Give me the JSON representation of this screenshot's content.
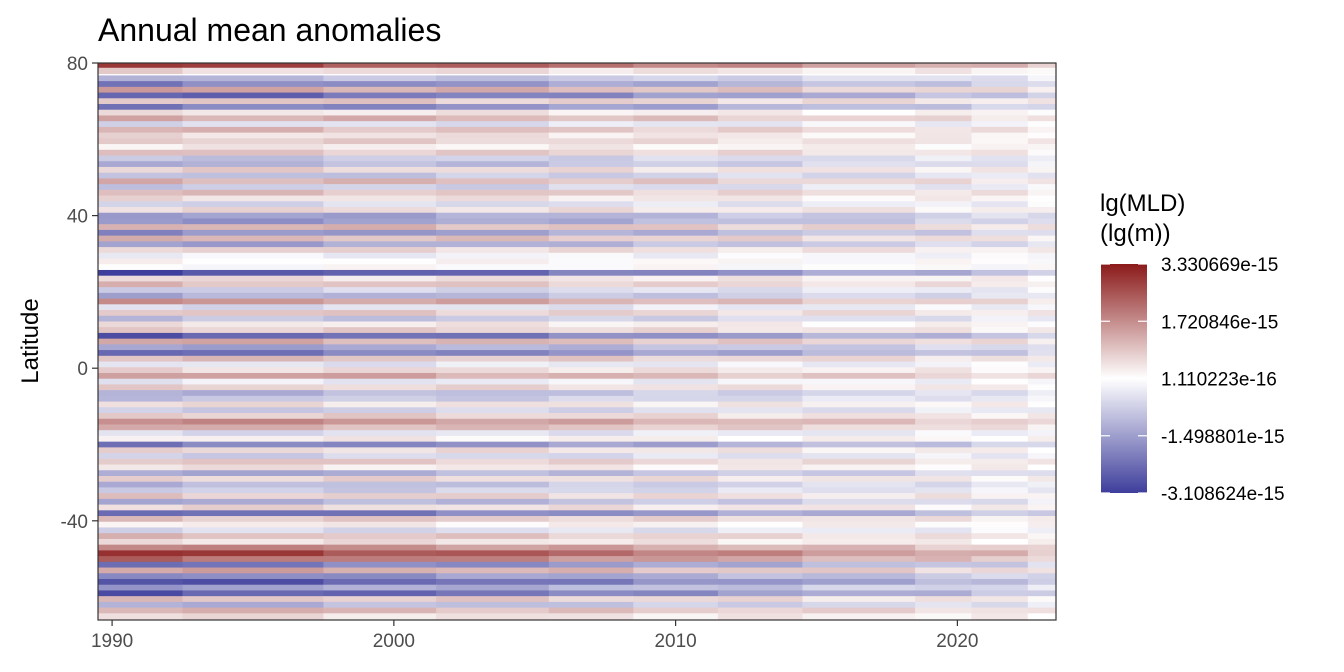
{
  "chart_data": {
    "type": "heatmap",
    "title": "Annual mean anomalies",
    "xlabel": "",
    "ylabel": "Latitude",
    "x_ticks": [
      1990,
      2000,
      2010,
      2020
    ],
    "y_ticks": [
      80,
      40,
      0,
      -40
    ],
    "xlim": [
      1989.5,
      2023.5
    ],
    "ylim": [
      -66,
      80
    ],
    "x_bins": [
      [
        1989.5,
        1992.5
      ],
      [
        1992.5,
        1997.5
      ],
      [
        1997.5,
        2001.5
      ],
      [
        2001.5,
        2005.5
      ],
      [
        2005.5,
        2008.5
      ],
      [
        2008.5,
        2011.5
      ],
      [
        2011.5,
        2014.5
      ],
      [
        2014.5,
        2018.5
      ],
      [
        2018.5,
        2020.5
      ],
      [
        2020.5,
        2022.5
      ],
      [
        2022.5,
        2023.5
      ]
    ],
    "lat_bins": [
      {
        "lat": 79.5,
        "anomaly": 2.9
      },
      {
        "lat": 78.0,
        "anomaly": 0.6
      },
      {
        "lat": 76.0,
        "anomaly": -1.2
      },
      {
        "lat": 74.5,
        "anomaly": -2.1
      },
      {
        "lat": 73.0,
        "anomaly": 1.4
      },
      {
        "lat": 71.5,
        "anomaly": -2.6
      },
      {
        "lat": 70.0,
        "anomaly": 0.9
      },
      {
        "lat": 68.5,
        "anomaly": -2.2
      },
      {
        "lat": 67.0,
        "anomaly": 0.4
      },
      {
        "lat": 65.5,
        "anomaly": 1.3
      },
      {
        "lat": 64.0,
        "anomaly": -0.6
      },
      {
        "lat": 62.5,
        "anomaly": 1.1
      },
      {
        "lat": 61.0,
        "anomaly": 0.5
      },
      {
        "lat": 59.5,
        "anomaly": 0.8
      },
      {
        "lat": 58.0,
        "anomaly": 0.3
      },
      {
        "lat": 56.5,
        "anomaly": 0.9
      },
      {
        "lat": 55.0,
        "anomaly": -1.0
      },
      {
        "lat": 53.5,
        "anomaly": -1.3
      },
      {
        "lat": 52.0,
        "anomaly": 0.7
      },
      {
        "lat": 50.5,
        "anomaly": -1.1
      },
      {
        "lat": 49.0,
        "anomaly": 1.2
      },
      {
        "lat": 47.5,
        "anomaly": -0.9
      },
      {
        "lat": 46.0,
        "anomaly": 1.0
      },
      {
        "lat": 44.5,
        "anomaly": 0.5
      },
      {
        "lat": 43.0,
        "anomaly": -0.7
      },
      {
        "lat": 41.5,
        "anomaly": 0.6
      },
      {
        "lat": 40.0,
        "anomaly": -1.7
      },
      {
        "lat": 38.5,
        "anomaly": -1.8
      },
      {
        "lat": 37.0,
        "anomaly": 1.2
      },
      {
        "lat": 35.5,
        "anomaly": -1.9
      },
      {
        "lat": 34.0,
        "anomaly": 1.1
      },
      {
        "lat": 32.5,
        "anomaly": -1.6
      },
      {
        "lat": 31.0,
        "anomaly": 0.7
      },
      {
        "lat": 29.5,
        "anomaly": -0.3
      },
      {
        "lat": 28.0,
        "anomaly": 0.1
      },
      {
        "lat": 26.5,
        "anomaly": 0.0
      },
      {
        "lat": 25.0,
        "anomaly": -3.0
      },
      {
        "lat": 23.5,
        "anomaly": 0.5
      },
      {
        "lat": 22.0,
        "anomaly": 1.0
      },
      {
        "lat": 20.5,
        "anomaly": -0.8
      },
      {
        "lat": 19.0,
        "anomaly": -1.4
      },
      {
        "lat": 17.5,
        "anomaly": 1.6
      },
      {
        "lat": 16.0,
        "anomaly": -0.6
      },
      {
        "lat": 14.5,
        "anomaly": 0.9
      },
      {
        "lat": 13.0,
        "anomaly": -1.1
      },
      {
        "lat": 11.5,
        "anomaly": 0.4
      },
      {
        "lat": 10.0,
        "anomaly": 0.8
      },
      {
        "lat": 8.5,
        "anomaly": -2.7
      },
      {
        "lat": 7.0,
        "anomaly": 1.3
      },
      {
        "lat": 5.5,
        "anomaly": -1.6
      },
      {
        "lat": 4.0,
        "anomaly": -2.4
      },
      {
        "lat": 2.5,
        "anomaly": 1.0
      },
      {
        "lat": 1.0,
        "anomaly": -0.5
      },
      {
        "lat": -0.5,
        "anomaly": 0.6
      },
      {
        "lat": -2.0,
        "anomaly": 1.5
      },
      {
        "lat": -3.5,
        "anomaly": -0.4
      },
      {
        "lat": -5.0,
        "anomaly": 0.7
      },
      {
        "lat": -6.5,
        "anomaly": -1.3
      },
      {
        "lat": -8.0,
        "anomaly": -1.0
      },
      {
        "lat": -9.5,
        "anomaly": 0.5
      },
      {
        "lat": -11.0,
        "anomaly": -0.9
      },
      {
        "lat": -12.5,
        "anomaly": 0.8
      },
      {
        "lat": -14.0,
        "anomaly": 1.8
      },
      {
        "lat": -15.5,
        "anomaly": 1.2
      },
      {
        "lat": -17.0,
        "anomaly": -0.6
      },
      {
        "lat": -18.5,
        "anomaly": 0.3
      },
      {
        "lat": -20.0,
        "anomaly": -2.2
      },
      {
        "lat": -21.5,
        "anomaly": 0.6
      },
      {
        "lat": -23.0,
        "anomaly": -0.8
      },
      {
        "lat": -24.5,
        "anomaly": 0.9
      },
      {
        "lat": -26.0,
        "anomaly": 0.4
      },
      {
        "lat": -27.5,
        "anomaly": -1.5
      },
      {
        "lat": -29.0,
        "anomaly": 0.7
      },
      {
        "lat": -30.5,
        "anomaly": -1.2
      },
      {
        "lat": -32.0,
        "anomaly": -0.9
      },
      {
        "lat": -33.5,
        "anomaly": 0.8
      },
      {
        "lat": -35.0,
        "anomaly": -1.4
      },
      {
        "lat": -36.5,
        "anomaly": 0.6
      },
      {
        "lat": -38.0,
        "anomaly": -2.5
      },
      {
        "lat": -39.5,
        "anomaly": 0.9
      },
      {
        "lat": -41.0,
        "anomaly": 0.3
      },
      {
        "lat": -42.5,
        "anomaly": -0.7
      },
      {
        "lat": -44.0,
        "anomaly": 1.0
      },
      {
        "lat": -45.5,
        "anomaly": 0.5
      },
      {
        "lat": -47.0,
        "anomaly": 1.9
      },
      {
        "lat": -48.5,
        "anomaly": 3.0
      },
      {
        "lat": -50.0,
        "anomaly": 2.2
      },
      {
        "lat": -51.5,
        "anomaly": -2.3
      },
      {
        "lat": -53.0,
        "anomaly": 1.4
      },
      {
        "lat": -54.5,
        "anomaly": -2.0
      },
      {
        "lat": -56.0,
        "anomaly": -2.9
      },
      {
        "lat": -57.5,
        "anomaly": -1.6
      },
      {
        "lat": -59.0,
        "anomaly": -2.8
      },
      {
        "lat": -60.5,
        "anomaly": 0.9
      },
      {
        "lat": -62.0,
        "anomaly": -1.3
      },
      {
        "lat": -63.5,
        "anomaly": 1.2
      },
      {
        "lat": -65.0,
        "anomaly": 0.5
      }
    ],
    "lat_bin_height": 1.5,
    "anomaly_units": "e-15",
    "color_scale": {
      "title_line1": "lg(MLD)",
      "title_line2": "(lg(m))",
      "low_color": "#3e3e9c",
      "mid_color": "#ffffff",
      "high_color": "#8b1a1a",
      "domain": [
        -3.108624,
        3.330669
      ],
      "labels": [
        "3.330669e-15",
        "1.720846e-15",
        "1.110223e-16",
        "-1.498801e-15",
        "-3.108624e-15"
      ],
      "label_values": [
        3.330669,
        1.720846,
        0.111022,
        -1.498801,
        -3.108624
      ]
    },
    "legend_position": "right",
    "grid": false
  }
}
